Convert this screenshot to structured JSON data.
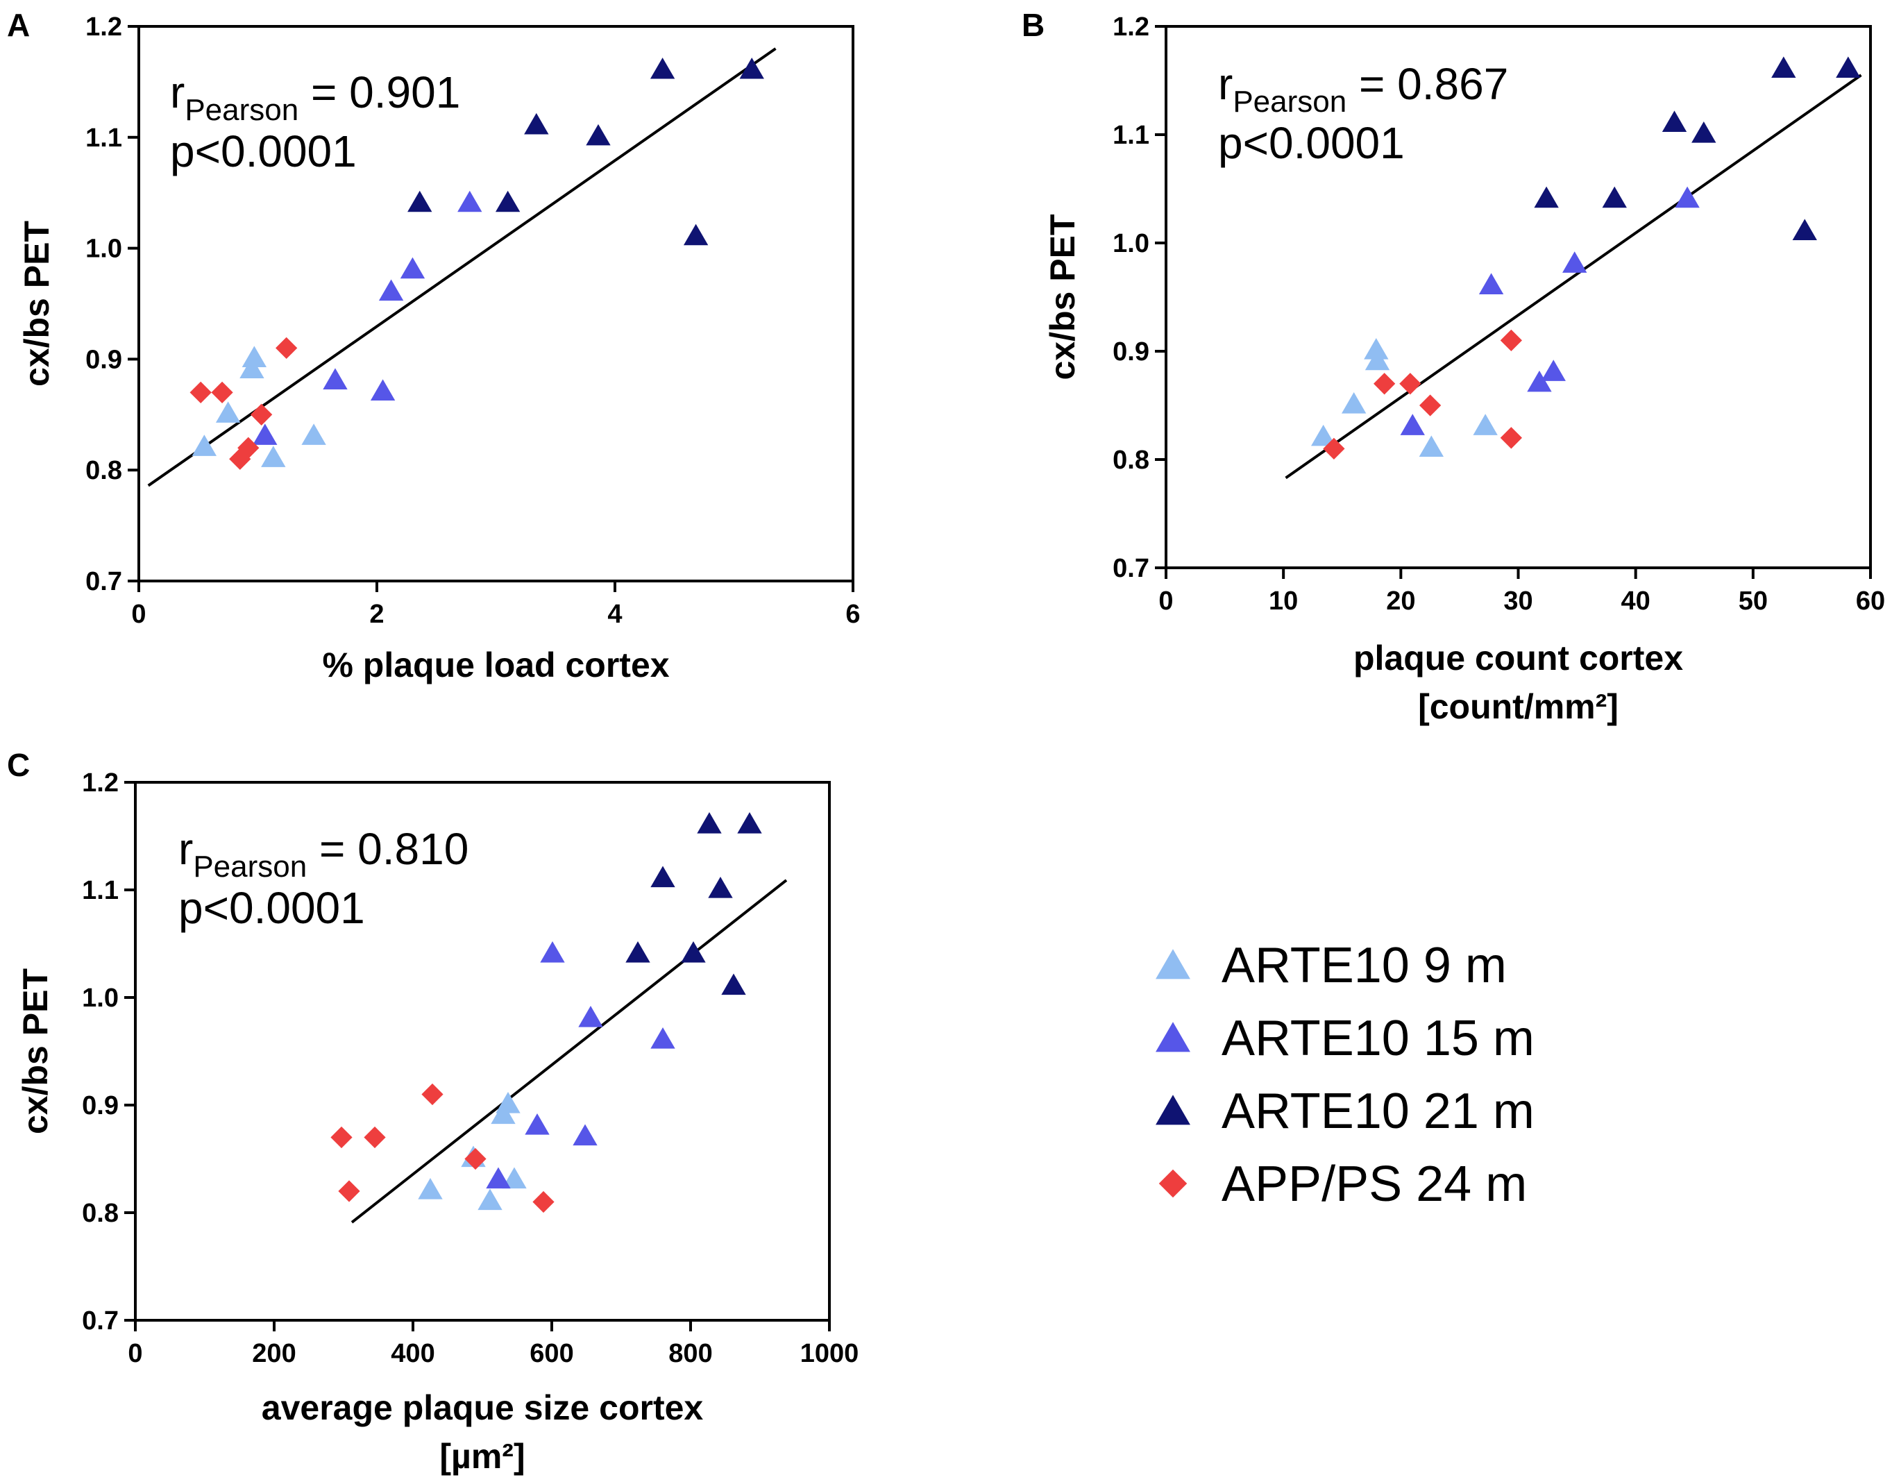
{
  "colors": {
    "arte10_9m": "#90bdf2",
    "arte10_15m": "#5656e8",
    "arte10_21m": "#0f1372",
    "app_ps_24m": "#ee3e3e",
    "axis": "#000000"
  },
  "legend": [
    {
      "label": "ARTE10 9 m",
      "series_key": "arte10_9m",
      "shape": "triangle"
    },
    {
      "label": "ARTE10 15 m",
      "series_key": "arte10_15m",
      "shape": "triangle"
    },
    {
      "label": "ARTE10 21 m",
      "series_key": "arte10_21m",
      "shape": "triangle"
    },
    {
      "label": "APP/PS 24 m",
      "series_key": "app_ps_24m",
      "shape": "diamond"
    }
  ],
  "chart_data": [
    {
      "type": "scatter",
      "panel": "A",
      "stat": {
        "r_prefix": "r",
        "r_sub": "Pearson",
        "r_value": " = 0.901",
        "p_text": "p<0.0001"
      },
      "xlabel": [
        "% plaque load cortex"
      ],
      "ylabel": "cx/bs PET",
      "xlim": [
        0,
        6
      ],
      "ylim": [
        0.7,
        1.2
      ],
      "xticks": [
        0,
        2,
        4,
        6
      ],
      "yticks": [
        0.7,
        0.8,
        0.9,
        1.0,
        1.1,
        1.2
      ],
      "ytick_labels": [
        "0.7",
        "0.8",
        "0.9",
        "1.0",
        "1.1",
        "1.2"
      ],
      "regression": {
        "x": [
          0.08,
          5.35
        ],
        "y": [
          0.786,
          1.18
        ]
      },
      "series": [
        {
          "name": "ARTE10 9 m",
          "key": "arte10_9m",
          "shape": "triangle",
          "points": [
            [
              0.55,
              0.82
            ],
            [
              0.75,
              0.85
            ],
            [
              0.95,
              0.89
            ],
            [
              0.97,
              0.9
            ],
            [
              1.13,
              0.81
            ],
            [
              1.47,
              0.83
            ]
          ]
        },
        {
          "name": "ARTE10 15 m",
          "key": "arte10_15m",
          "shape": "triangle",
          "points": [
            [
              1.06,
              0.83
            ],
            [
              1.65,
              0.88
            ],
            [
              2.05,
              0.87
            ],
            [
              2.12,
              0.96
            ],
            [
              2.3,
              0.98
            ],
            [
              2.78,
              1.04
            ]
          ]
        },
        {
          "name": "ARTE10 21 m",
          "key": "arte10_21m",
          "shape": "triangle",
          "points": [
            [
              2.36,
              1.04
            ],
            [
              3.1,
              1.04
            ],
            [
              3.34,
              1.11
            ],
            [
              3.86,
              1.1
            ],
            [
              4.4,
              1.16
            ],
            [
              4.68,
              1.01
            ],
            [
              5.15,
              1.16
            ]
          ]
        },
        {
          "name": "APP/PS 24 m",
          "key": "app_ps_24m",
          "shape": "diamond",
          "points": [
            [
              0.52,
              0.87
            ],
            [
              0.7,
              0.87
            ],
            [
              0.85,
              0.81
            ],
            [
              0.92,
              0.82
            ],
            [
              1.03,
              0.85
            ],
            [
              1.24,
              0.91
            ]
          ]
        }
      ]
    },
    {
      "type": "scatter",
      "panel": "B",
      "stat": {
        "r_prefix": "r",
        "r_sub": "Pearson",
        "r_value": " = 0.867",
        "p_text": "p<0.0001"
      },
      "xlabel": [
        "plaque count cortex",
        "[count/mm²]"
      ],
      "ylabel": "cx/bs PET",
      "xlim": [
        0,
        60
      ],
      "ylim": [
        0.7,
        1.2
      ],
      "xticks": [
        0,
        10,
        20,
        30,
        40,
        50,
        60
      ],
      "yticks": [
        0.7,
        0.8,
        0.9,
        1.0,
        1.1,
        1.2
      ],
      "ytick_labels": [
        "0.7",
        "0.8",
        "0.9",
        "1.0",
        "1.1",
        "1.2"
      ],
      "regression": {
        "x": [
          10.2,
          59.2
        ],
        "y": [
          0.783,
          1.155
        ]
      },
      "series": [
        {
          "name": "ARTE10 9 m",
          "key": "arte10_9m",
          "shape": "triangle",
          "points": [
            [
              13.4,
              0.82
            ],
            [
              16.0,
              0.85
            ],
            [
              17.9,
              0.9
            ],
            [
              18.0,
              0.89
            ],
            [
              22.6,
              0.81
            ],
            [
              27.2,
              0.83
            ]
          ]
        },
        {
          "name": "ARTE10 15 m",
          "key": "arte10_15m",
          "shape": "triangle",
          "points": [
            [
              21.0,
              0.83
            ],
            [
              27.7,
              0.96
            ],
            [
              31.8,
              0.87
            ],
            [
              33.0,
              0.88
            ],
            [
              34.8,
              0.98
            ],
            [
              44.4,
              1.04
            ]
          ]
        },
        {
          "name": "ARTE10 21 m",
          "key": "arte10_21m",
          "shape": "triangle",
          "points": [
            [
              32.4,
              1.04
            ],
            [
              38.2,
              1.04
            ],
            [
              43.3,
              1.11
            ],
            [
              45.8,
              1.1
            ],
            [
              52.6,
              1.16
            ],
            [
              54.4,
              1.01
            ],
            [
              58.1,
              1.16
            ]
          ]
        },
        {
          "name": "APP/PS 24 m",
          "key": "app_ps_24m",
          "shape": "diamond",
          "points": [
            [
              14.3,
              0.81
            ],
            [
              18.6,
              0.87
            ],
            [
              20.8,
              0.87
            ],
            [
              22.5,
              0.85
            ],
            [
              29.4,
              0.91
            ],
            [
              29.4,
              0.82
            ]
          ]
        }
      ]
    },
    {
      "type": "scatter",
      "panel": "C",
      "stat": {
        "r_prefix": "r",
        "r_sub": "Pearson",
        "r_value": " = 0.810",
        "p_text": "p<0.0001"
      },
      "xlabel": [
        "average plaque size cortex",
        "[µm²]"
      ],
      "ylabel": "cx/bs PET",
      "xlim": [
        0,
        1000
      ],
      "ylim": [
        0.7,
        1.2
      ],
      "xticks": [
        0,
        200,
        400,
        600,
        800,
        1000
      ],
      "yticks": [
        0.7,
        0.8,
        0.9,
        1.0,
        1.1,
        1.2
      ],
      "ytick_labels": [
        "0.7",
        "0.8",
        "0.9",
        "1.0",
        "1.1",
        "1.2"
      ],
      "regression": {
        "x": [
          312,
          938
        ],
        "y": [
          0.791,
          1.109
        ]
      },
      "series": [
        {
          "name": "ARTE10 9 m",
          "key": "arte10_9m",
          "shape": "triangle",
          "points": [
            [
              425,
              0.82
            ],
            [
              487,
              0.85
            ],
            [
              511,
              0.81
            ],
            [
              530,
              0.89
            ],
            [
              537,
              0.9
            ],
            [
              546,
              0.83
            ]
          ]
        },
        {
          "name": "ARTE10 15 m",
          "key": "arte10_15m",
          "shape": "triangle",
          "points": [
            [
              523,
              0.83
            ],
            [
              579,
              0.88
            ],
            [
              601,
              1.04
            ],
            [
              648,
              0.87
            ],
            [
              656,
              0.98
            ],
            [
              760,
              0.96
            ]
          ]
        },
        {
          "name": "ARTE10 21 m",
          "key": "arte10_21m",
          "shape": "triangle",
          "points": [
            [
              724,
              1.04
            ],
            [
              760,
              1.11
            ],
            [
              804,
              1.04
            ],
            [
              827,
              1.16
            ],
            [
              843,
              1.1
            ],
            [
              862,
              1.01
            ],
            [
              885,
              1.16
            ]
          ]
        },
        {
          "name": "APP/PS 24 m",
          "key": "app_ps_24m",
          "shape": "diamond",
          "points": [
            [
              297,
              0.87
            ],
            [
              308,
              0.82
            ],
            [
              345,
              0.87
            ],
            [
              428,
              0.91
            ],
            [
              490,
              0.85
            ],
            [
              588,
              0.81
            ]
          ]
        }
      ]
    }
  ]
}
